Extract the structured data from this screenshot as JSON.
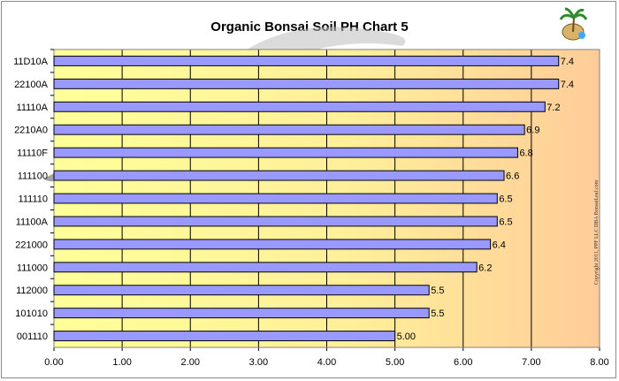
{
  "chart_data": {
    "type": "bar",
    "orientation": "horizontal",
    "title": "Organic Bonsai Soil PH Chart 5",
    "xlabel": "",
    "ylabel": "",
    "xlim": [
      0,
      8
    ],
    "x_ticks": [
      "0.00",
      "1.00",
      "2.00",
      "3.00",
      "4.00",
      "5.00",
      "6.00",
      "7.00",
      "8.00"
    ],
    "grid": true,
    "legend": "none",
    "categories": [
      "11D10A",
      "22100A",
      "11110A",
      "2210A0",
      "11110F",
      "111100",
      "111110",
      "11100A",
      "221000",
      "111000",
      "112000",
      "101010",
      "001110"
    ],
    "values": [
      7.4,
      7.4,
      7.2,
      6.9,
      6.8,
      6.6,
      6.5,
      6.5,
      6.4,
      6.2,
      5.5,
      5.5,
      5.0
    ],
    "data_labels": [
      "7.4",
      "7.4",
      "7.2",
      "6.9",
      "6.8",
      "6.6",
      "6.5",
      "6.5",
      "6.4",
      "6.2",
      "5.5",
      "5.5",
      "5.00"
    ],
    "copyright": "Copyright 2011, PPF LLC DBA BonsaiLeaf.com",
    "colors": {
      "bar_fill": "#9999ff",
      "bar_stroke": "#000000",
      "plot_bg_left": "#ffff99",
      "plot_bg_right": "#ffcc99",
      "grid": "#000000"
    }
  }
}
